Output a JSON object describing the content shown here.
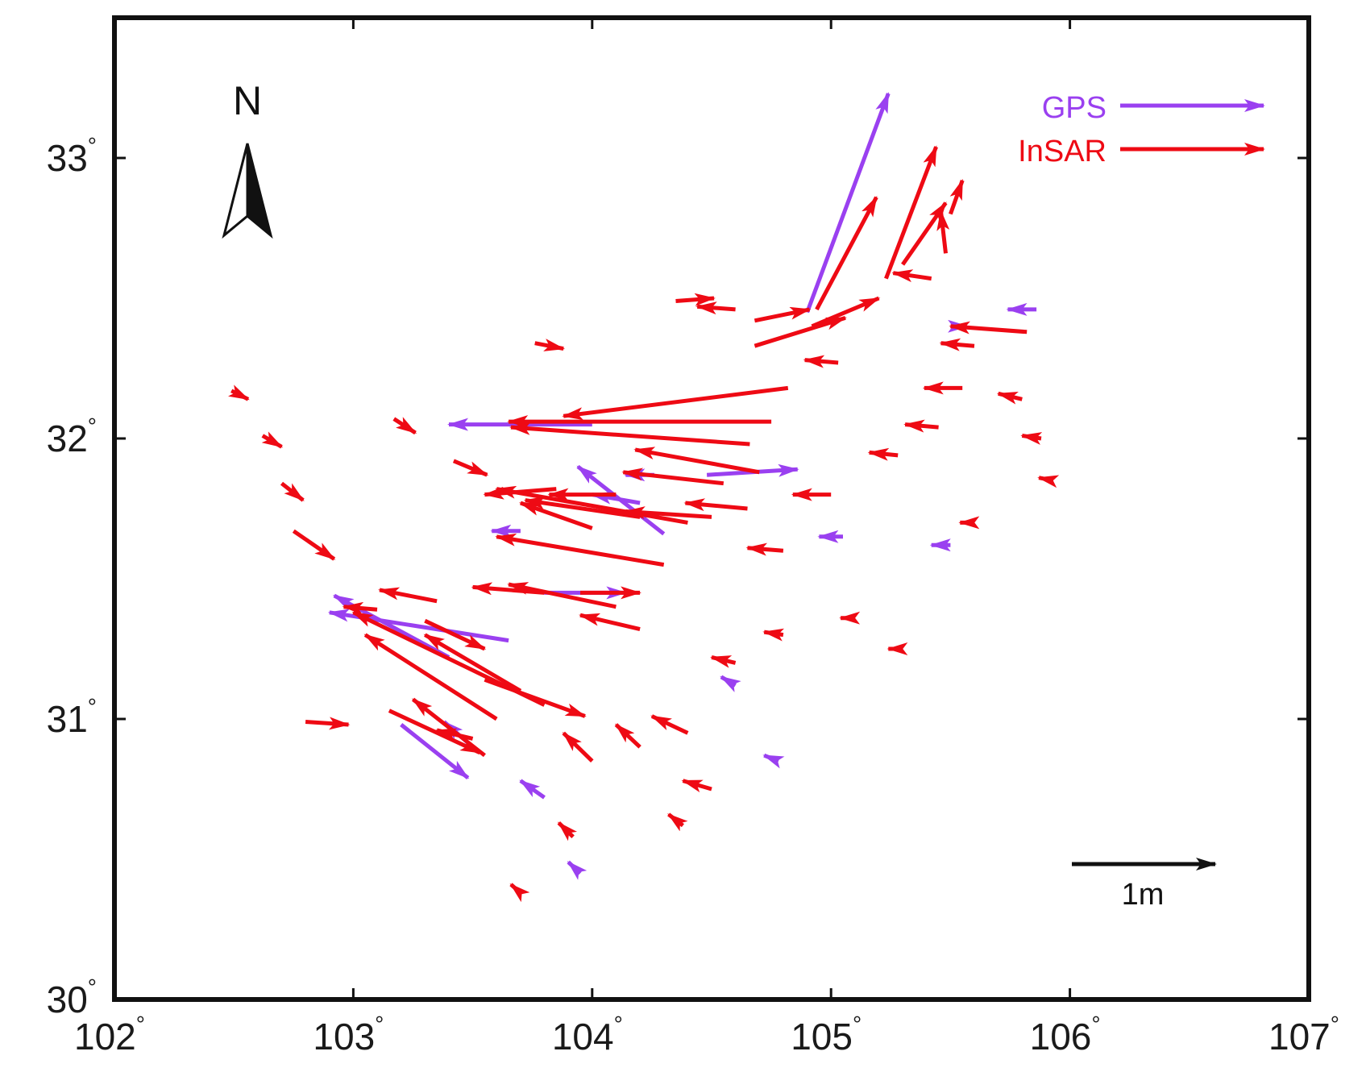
{
  "figure": {
    "type": "map",
    "colors": {
      "gps": "#9a40f0",
      "insar": "#ee0a14",
      "frame": "#111111",
      "background": "#ffffff"
    }
  },
  "axes": {
    "x_range": [
      102,
      107
    ],
    "y_range": [
      30,
      33.5
    ],
    "x_ticks": [
      {
        "value": 102,
        "label": "102"
      },
      {
        "value": 103,
        "label": "103"
      },
      {
        "value": 104,
        "label": "104"
      },
      {
        "value": 105,
        "label": "105"
      },
      {
        "value": 106,
        "label": "106"
      },
      {
        "value": 107,
        "label": "107"
      }
    ],
    "y_ticks": [
      {
        "value": 30,
        "label": "30"
      },
      {
        "value": 31,
        "label": "31"
      },
      {
        "value": 32,
        "label": "32"
      },
      {
        "value": 33,
        "label": "33"
      }
    ],
    "degree_symbol": "°"
  },
  "legend": {
    "gps_label": "GPS",
    "insar_label": "InSAR"
  },
  "north_arrow": {
    "label": "N"
  },
  "scale_bar": {
    "label": "1m",
    "length_m": 1
  },
  "chart_data": {
    "type": "scatter",
    "title": "",
    "xlabel": "",
    "ylabel": "",
    "xlim": [
      102,
      107
    ],
    "ylim": [
      30,
      33.5
    ],
    "vector_unit": "lon/lat degrees per displayed arrow; scale bar = 1 m",
    "series": [
      {
        "name": "GPS",
        "vectors": [
          {
            "lon": 104.9,
            "lat": 32.45,
            "dlon": 0.34,
            "dlat": 0.78
          },
          {
            "lon": 105.52,
            "lat": 32.4,
            "dlon": 0.05,
            "dlat": 0.0
          },
          {
            "lon": 105.86,
            "lat": 32.46,
            "dlon": -0.12,
            "dlat": 0.0
          },
          {
            "lon": 104.26,
            "lat": 31.87,
            "dlon": -0.12,
            "dlat": 0.0
          },
          {
            "lon": 104.48,
            "lat": 31.87,
            "dlon": 0.38,
            "dlat": 0.02
          },
          {
            "lon": 104.0,
            "lat": 32.05,
            "dlon": -0.6,
            "dlat": 0.0
          },
          {
            "lon": 104.3,
            "lat": 31.66,
            "dlon": -0.36,
            "dlat": 0.24
          },
          {
            "lon": 104.2,
            "lat": 31.77,
            "dlon": -0.2,
            "dlat": 0.03
          },
          {
            "lon": 105.05,
            "lat": 31.65,
            "dlon": -0.1,
            "dlat": 0.0
          },
          {
            "lon": 103.7,
            "lat": 31.67,
            "dlon": -0.12,
            "dlat": 0.0
          },
          {
            "lon": 103.8,
            "lat": 31.45,
            "dlon": 0.34,
            "dlat": 0.0
          },
          {
            "lon": 103.65,
            "lat": 31.28,
            "dlon": -0.75,
            "dlat": 0.1
          },
          {
            "lon": 103.4,
            "lat": 31.22,
            "dlon": -0.48,
            "dlat": 0.22
          },
          {
            "lon": 103.2,
            "lat": 30.98,
            "dlon": 0.28,
            "dlat": -0.19
          },
          {
            "lon": 103.5,
            "lat": 30.9,
            "dlon": -0.12,
            "dlat": 0.09
          },
          {
            "lon": 103.8,
            "lat": 30.72,
            "dlon": -0.1,
            "dlat": 0.06
          },
          {
            "lon": 104.6,
            "lat": 31.12,
            "dlon": -0.06,
            "dlat": 0.03
          },
          {
            "lon": 104.78,
            "lat": 30.85,
            "dlon": -0.06,
            "dlat": 0.02
          },
          {
            "lon": 105.5,
            "lat": 31.62,
            "dlon": -0.08,
            "dlat": 0.0
          },
          {
            "lon": 103.95,
            "lat": 30.45,
            "dlon": -0.05,
            "dlat": 0.04
          }
        ]
      },
      {
        "name": "InSAR",
        "vectors": [
          {
            "lon": 104.94,
            "lat": 32.46,
            "dlon": 0.25,
            "dlat": 0.4
          },
          {
            "lon": 105.23,
            "lat": 32.57,
            "dlon": 0.21,
            "dlat": 0.47
          },
          {
            "lon": 105.3,
            "lat": 32.62,
            "dlon": 0.18,
            "dlat": 0.22
          },
          {
            "lon": 105.48,
            "lat": 32.66,
            "dlon": -0.02,
            "dlat": 0.15
          },
          {
            "lon": 105.5,
            "lat": 32.8,
            "dlon": 0.05,
            "dlat": 0.12
          },
          {
            "lon": 105.42,
            "lat": 32.57,
            "dlon": -0.16,
            "dlat": 0.02
          },
          {
            "lon": 104.92,
            "lat": 32.4,
            "dlon": 0.28,
            "dlat": 0.1
          },
          {
            "lon": 104.68,
            "lat": 32.33,
            "dlon": 0.38,
            "dlat": 0.1
          },
          {
            "lon": 104.68,
            "lat": 32.42,
            "dlon": 0.23,
            "dlat": 0.04
          },
          {
            "lon": 104.35,
            "lat": 32.49,
            "dlon": 0.16,
            "dlat": 0.01
          },
          {
            "lon": 104.6,
            "lat": 32.46,
            "dlon": -0.16,
            "dlat": 0.01
          },
          {
            "lon": 105.82,
            "lat": 32.38,
            "dlon": -0.32,
            "dlat": 0.02
          },
          {
            "lon": 105.6,
            "lat": 32.33,
            "dlon": -0.14,
            "dlat": 0.01
          },
          {
            "lon": 105.55,
            "lat": 32.18,
            "dlon": -0.16,
            "dlat": 0.0
          },
          {
            "lon": 105.45,
            "lat": 32.04,
            "dlon": -0.14,
            "dlat": 0.01
          },
          {
            "lon": 104.82,
            "lat": 32.18,
            "dlon": -0.94,
            "dlat": -0.1
          },
          {
            "lon": 104.75,
            "lat": 32.06,
            "dlon": -1.1,
            "dlat": 0.0
          },
          {
            "lon": 104.66,
            "lat": 31.98,
            "dlon": -1.0,
            "dlat": 0.06
          },
          {
            "lon": 104.7,
            "lat": 31.88,
            "dlon": -0.52,
            "dlat": 0.08
          },
          {
            "lon": 104.55,
            "lat": 31.84,
            "dlon": -0.42,
            "dlat": 0.04
          },
          {
            "lon": 103.85,
            "lat": 31.82,
            "dlon": -0.3,
            "dlat": -0.02
          },
          {
            "lon": 104.5,
            "lat": 31.72,
            "dlon": -0.36,
            "dlat": 0.02
          },
          {
            "lon": 104.2,
            "lat": 31.72,
            "dlon": -0.48,
            "dlat": 0.06
          },
          {
            "lon": 104.4,
            "lat": 31.7,
            "dlon": -0.8,
            "dlat": 0.12
          },
          {
            "lon": 104.0,
            "lat": 31.68,
            "dlon": -0.3,
            "dlat": 0.09
          },
          {
            "lon": 104.3,
            "lat": 31.55,
            "dlon": -0.7,
            "dlat": 0.1
          },
          {
            "lon": 104.65,
            "lat": 31.75,
            "dlon": -0.26,
            "dlat": 0.02
          },
          {
            "lon": 103.8,
            "lat": 31.45,
            "dlon": -0.3,
            "dlat": 0.02
          },
          {
            "lon": 103.95,
            "lat": 31.45,
            "dlon": 0.25,
            "dlat": 0.0
          },
          {
            "lon": 104.1,
            "lat": 31.4,
            "dlon": -0.45,
            "dlat": 0.08
          },
          {
            "lon": 104.2,
            "lat": 31.32,
            "dlon": -0.25,
            "dlat": 0.05
          },
          {
            "lon": 103.35,
            "lat": 31.42,
            "dlon": -0.24,
            "dlat": 0.04
          },
          {
            "lon": 103.1,
            "lat": 31.39,
            "dlon": -0.14,
            "dlat": 0.01
          },
          {
            "lon": 103.3,
            "lat": 31.35,
            "dlon": 0.25,
            "dlat": -0.1
          },
          {
            "lon": 103.8,
            "lat": 31.05,
            "dlon": -0.8,
            "dlat": 0.33
          },
          {
            "lon": 103.6,
            "lat": 31.0,
            "dlon": -0.55,
            "dlat": 0.3
          },
          {
            "lon": 103.7,
            "lat": 31.1,
            "dlon": -0.4,
            "dlat": 0.2
          },
          {
            "lon": 103.55,
            "lat": 31.14,
            "dlon": 0.42,
            "dlat": -0.13
          },
          {
            "lon": 103.15,
            "lat": 31.03,
            "dlon": 0.38,
            "dlat": -0.15
          },
          {
            "lon": 103.55,
            "lat": 30.87,
            "dlon": -0.3,
            "dlat": 0.2
          },
          {
            "lon": 103.5,
            "lat": 30.93,
            "dlon": -0.15,
            "dlat": 0.03
          },
          {
            "lon": 102.8,
            "lat": 30.99,
            "dlon": 0.18,
            "dlat": -0.01
          },
          {
            "lon": 102.75,
            "lat": 31.67,
            "dlon": 0.17,
            "dlat": -0.1
          },
          {
            "lon": 102.7,
            "lat": 31.84,
            "dlon": 0.09,
            "dlat": -0.06
          },
          {
            "lon": 102.62,
            "lat": 32.01,
            "dlon": 0.08,
            "dlat": -0.04
          },
          {
            "lon": 102.49,
            "lat": 32.17,
            "dlon": 0.07,
            "dlat": -0.03
          },
          {
            "lon": 103.17,
            "lat": 32.07,
            "dlon": 0.09,
            "dlat": -0.05
          },
          {
            "lon": 103.42,
            "lat": 31.92,
            "dlon": 0.14,
            "dlat": -0.05
          },
          {
            "lon": 103.76,
            "lat": 32.34,
            "dlon": 0.12,
            "dlat": -0.02
          },
          {
            "lon": 104.1,
            "lat": 31.8,
            "dlon": -0.28,
            "dlat": 0.0
          },
          {
            "lon": 104.8,
            "lat": 31.6,
            "dlon": -0.15,
            "dlat": 0.01
          },
          {
            "lon": 105.0,
            "lat": 31.8,
            "dlon": -0.16,
            "dlat": 0.0
          },
          {
            "lon": 104.6,
            "lat": 31.2,
            "dlon": -0.1,
            "dlat": 0.02
          },
          {
            "lon": 104.4,
            "lat": 30.95,
            "dlon": -0.15,
            "dlat": 0.06
          },
          {
            "lon": 104.2,
            "lat": 30.9,
            "dlon": -0.1,
            "dlat": 0.08
          },
          {
            "lon": 104.0,
            "lat": 30.85,
            "dlon": -0.12,
            "dlat": 0.1
          },
          {
            "lon": 104.5,
            "lat": 30.75,
            "dlon": -0.12,
            "dlat": 0.03
          },
          {
            "lon": 104.8,
            "lat": 31.3,
            "dlon": -0.08,
            "dlat": 0.01
          },
          {
            "lon": 105.1,
            "lat": 31.36,
            "dlon": -0.06,
            "dlat": 0.0
          },
          {
            "lon": 105.3,
            "lat": 31.25,
            "dlon": -0.06,
            "dlat": 0.0
          },
          {
            "lon": 105.6,
            "lat": 31.7,
            "dlon": -0.06,
            "dlat": 0.0
          },
          {
            "lon": 105.28,
            "lat": 31.94,
            "dlon": -0.12,
            "dlat": 0.01
          },
          {
            "lon": 105.8,
            "lat": 32.14,
            "dlon": -0.1,
            "dlat": 0.02
          },
          {
            "lon": 105.88,
            "lat": 32.0,
            "dlon": -0.08,
            "dlat": 0.01
          },
          {
            "lon": 105.93,
            "lat": 31.85,
            "dlon": -0.06,
            "dlat": 0.01
          },
          {
            "lon": 105.03,
            "lat": 32.27,
            "dlon": -0.14,
            "dlat": 0.01
          },
          {
            "lon": 103.92,
            "lat": 30.58,
            "dlon": -0.06,
            "dlat": 0.05
          },
          {
            "lon": 103.7,
            "lat": 30.38,
            "dlon": -0.04,
            "dlat": 0.03
          },
          {
            "lon": 104.38,
            "lat": 30.62,
            "dlon": -0.06,
            "dlat": 0.04
          }
        ]
      }
    ]
  }
}
